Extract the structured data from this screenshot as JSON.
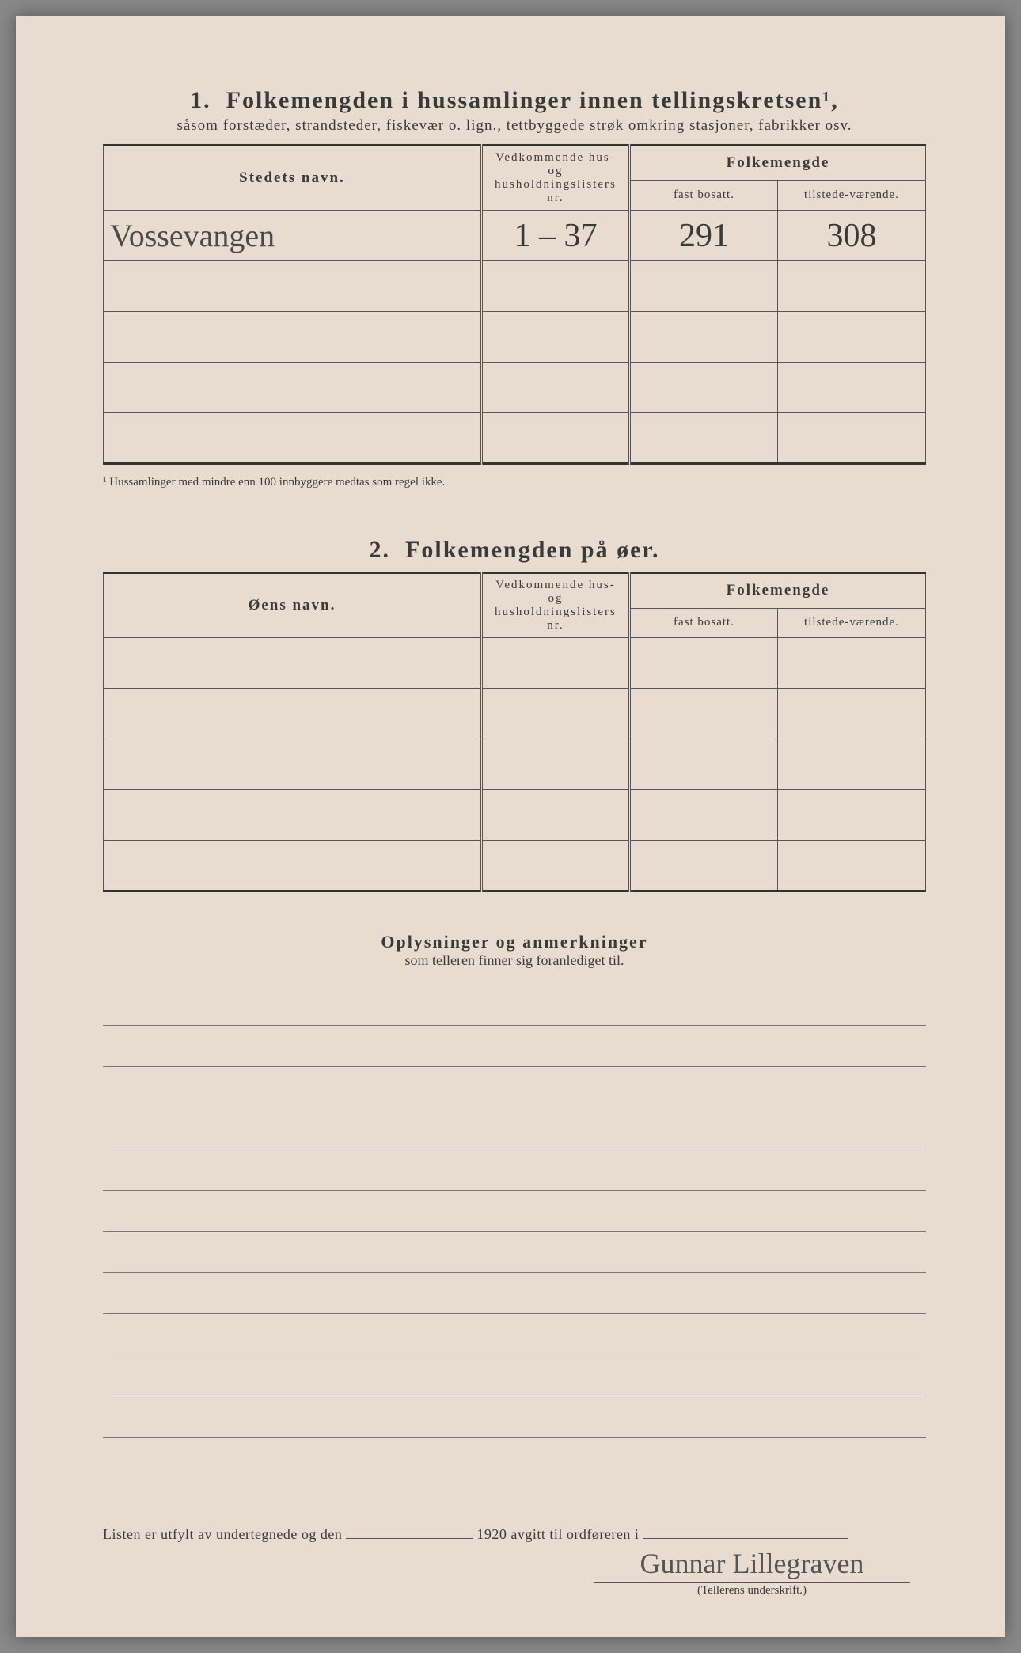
{
  "section1": {
    "number": "1.",
    "title": "Folkemengden i hussamlinger innen tellingskretsen¹,",
    "subtitle": "såsom forstæder, strandsteder, fiskevær o. lign., tettbyggede strøk omkring stasjoner, fabrikker osv.",
    "headers": {
      "name": "Stedets navn.",
      "nr": "Vedkommende hus- og husholdningslisters nr.",
      "folkemengde": "Folkemengde",
      "fast": "fast bosatt.",
      "tilstede": "tilstede-værende."
    },
    "rows": [
      {
        "name": "Vossevangen",
        "nr": "1 – 37",
        "fast": "291",
        "til": "308"
      },
      {
        "name": "",
        "nr": "",
        "fast": "",
        "til": ""
      },
      {
        "name": "",
        "nr": "",
        "fast": "",
        "til": ""
      },
      {
        "name": "",
        "nr": "",
        "fast": "",
        "til": ""
      },
      {
        "name": "",
        "nr": "",
        "fast": "",
        "til": ""
      }
    ],
    "footnote": "¹ Hussamlinger med mindre enn 100 innbyggere medtas som regel ikke."
  },
  "section2": {
    "number": "2.",
    "title": "Folkemengden på øer.",
    "headers": {
      "name": "Øens navn.",
      "nr": "Vedkommende hus- og husholdningslisters nr.",
      "folkemengde": "Folkemengde",
      "fast": "fast bosatt.",
      "tilstede": "tilstede-værende."
    },
    "rows": [
      {
        "name": "",
        "nr": "",
        "fast": "",
        "til": ""
      },
      {
        "name": "",
        "nr": "",
        "fast": "",
        "til": ""
      },
      {
        "name": "",
        "nr": "",
        "fast": "",
        "til": ""
      },
      {
        "name": "",
        "nr": "",
        "fast": "",
        "til": ""
      },
      {
        "name": "",
        "nr": "",
        "fast": "",
        "til": ""
      }
    ]
  },
  "notes": {
    "title": "Oplysninger og anmerkninger",
    "sub": "som telleren finner sig foranlediget til.",
    "lines": 11
  },
  "bottom": {
    "text_before": "Listen er utfylt av undertegnede og den",
    "year": "1920",
    "text_after": "avgitt til ordføreren i"
  },
  "signature": {
    "name": "Gunnar Lillegraven",
    "label": "(Tellerens underskrift.)"
  },
  "colors": {
    "paper": "#e8dcd0",
    "ink": "#3a3a3a",
    "hand": "#4a4a4a",
    "line": "#555"
  }
}
